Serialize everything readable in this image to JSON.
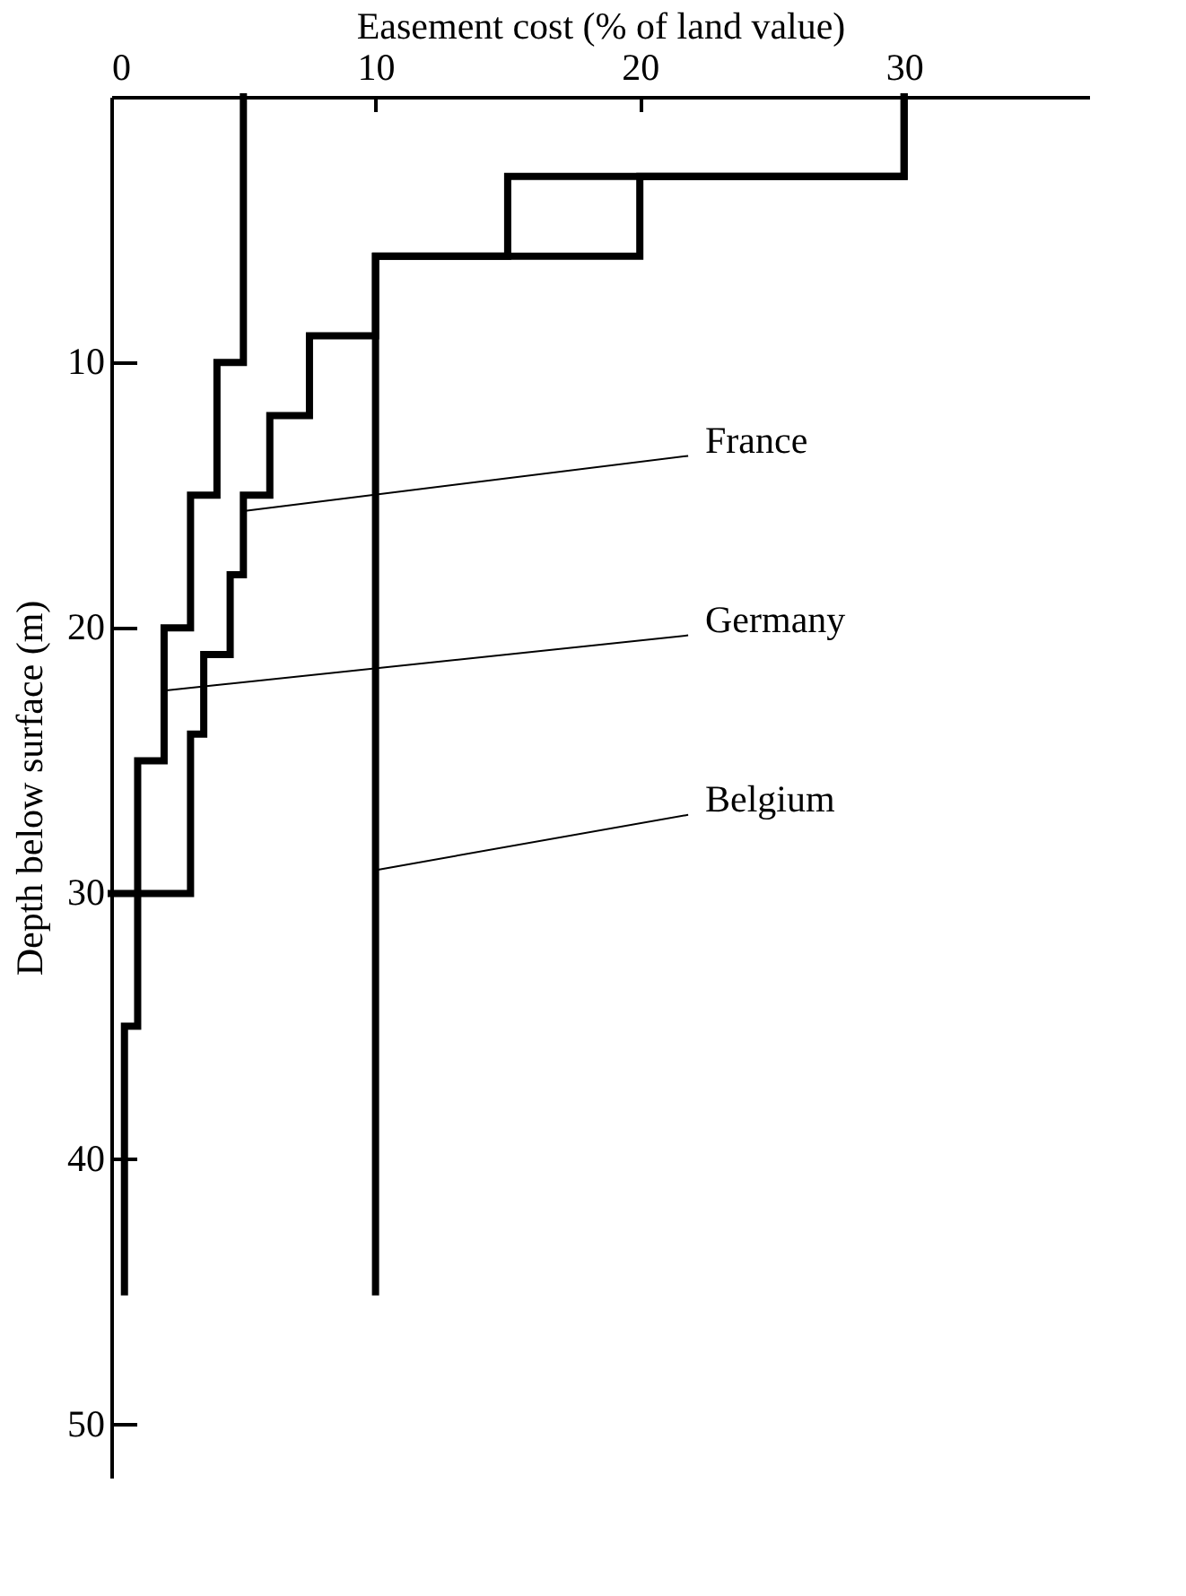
{
  "chart_data": {
    "type": "line",
    "xlabel": "Easement cost (% of land value)",
    "ylabel": "Depth below surface (m)",
    "xlim": [
      0,
      37
    ],
    "xticks": [
      0,
      10,
      20,
      30
    ],
    "ylim": [
      52,
      0
    ],
    "yticks": [
      10,
      20,
      30,
      40,
      50
    ],
    "grid": false,
    "series": [
      {
        "name": "France",
        "color": "#000000",
        "x": [
          30,
          30,
          15,
          15,
          10,
          10,
          7.5,
          7.5,
          6,
          6,
          5,
          5,
          4.5,
          4.5,
          3.5,
          3.5,
          3,
          3,
          0
        ],
        "values": [
          0,
          3,
          3,
          6,
          6,
          9,
          9,
          12,
          12,
          15,
          15,
          18,
          18,
          21,
          21,
          24,
          24,
          30,
          30
        ]
      },
      {
        "name": "Germany",
        "color": "#000000",
        "x": [
          5,
          5,
          4,
          4,
          3,
          3,
          2,
          2,
          1,
          1,
          0.5,
          0.5
        ],
        "values": [
          0,
          10,
          10,
          15,
          15,
          20,
          20,
          25,
          25,
          35,
          35,
          45
        ]
      },
      {
        "name": "Belgium",
        "color": "#000000",
        "x": [
          30,
          30,
          20,
          20,
          10,
          10
        ],
        "values": [
          0,
          3,
          3,
          6,
          6,
          45
        ]
      }
    ]
  }
}
